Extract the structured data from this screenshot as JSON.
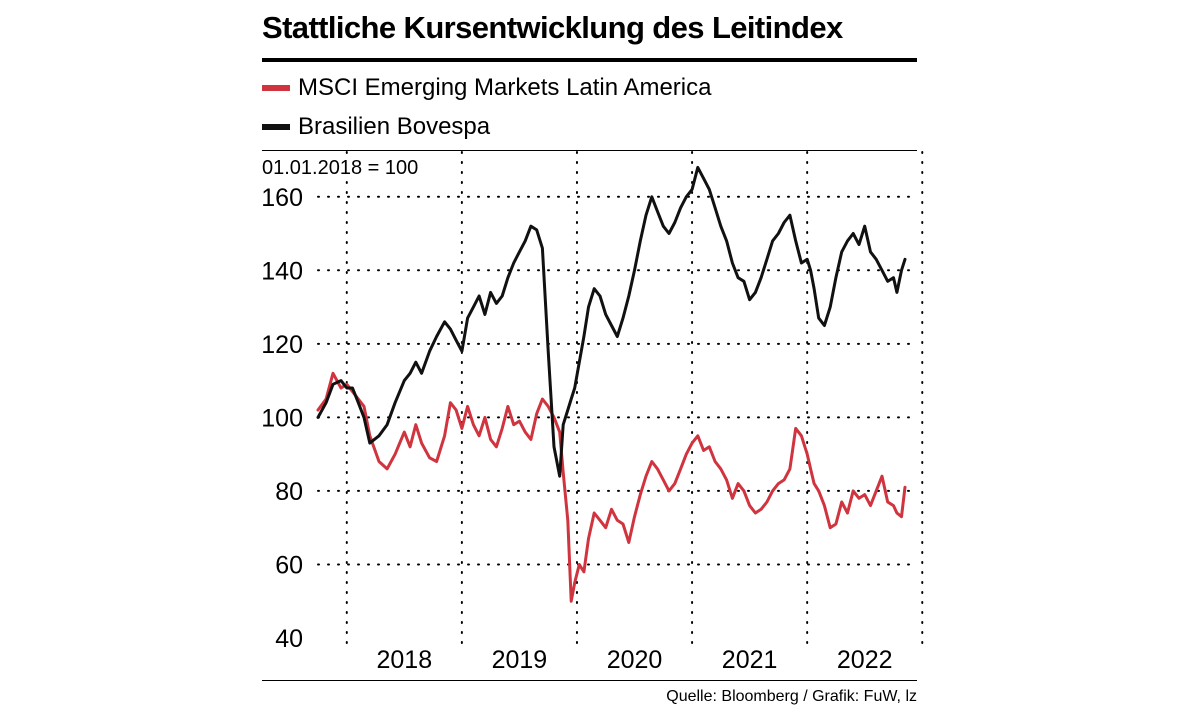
{
  "title": "Stattliche Kursentwicklung des Leitindex",
  "index_note": "01.01.2018 = 100",
  "source": "Quelle: Bloomberg / Grafik: FuW, lz",
  "colors": {
    "msci": "#d0343f",
    "bovespa": "#111111"
  },
  "legend": [
    {
      "label": "MSCI Emerging Markets Latin America",
      "color": "#d0343f"
    },
    {
      "label": "Brasilien Bovespa",
      "color": "#111111"
    }
  ],
  "chart_data": {
    "type": "line",
    "title": "Stattliche Kursentwicklung des Leitindex",
    "subtitle": "01.01.2018 = 100",
    "xlabel": "",
    "ylabel": "",
    "ylim": [
      40,
      170
    ],
    "xlim": [
      2017.75,
      2022.85
    ],
    "yticks": [
      "40",
      "60",
      "80",
      "100",
      "120",
      "140",
      "160"
    ],
    "xtick_labels": [
      "2018",
      "2019",
      "2020",
      "2021",
      "2022"
    ],
    "grid": true,
    "legend_position": "top-left",
    "series": [
      {
        "name": "MSCI Emerging Markets Latin America",
        "x": [
          2017.75,
          2017.82,
          2017.88,
          2017.95,
          2018.0,
          2018.05,
          2018.1,
          2018.15,
          2018.2,
          2018.28,
          2018.35,
          2018.42,
          2018.5,
          2018.55,
          2018.6,
          2018.65,
          2018.72,
          2018.78,
          2018.85,
          2018.9,
          2018.95,
          2019.0,
          2019.05,
          2019.1,
          2019.15,
          2019.2,
          2019.25,
          2019.3,
          2019.35,
          2019.4,
          2019.45,
          2019.5,
          2019.55,
          2019.6,
          2019.65,
          2019.7,
          2019.75,
          2019.8,
          2019.85,
          2019.88,
          2019.92,
          2019.95,
          2019.98,
          2020.02,
          2020.06,
          2020.1,
          2020.15,
          2020.2,
          2020.25,
          2020.3,
          2020.35,
          2020.4,
          2020.45,
          2020.5,
          2020.55,
          2020.6,
          2020.65,
          2020.7,
          2020.75,
          2020.8,
          2020.85,
          2020.9,
          2020.95,
          2021.0,
          2021.05,
          2021.1,
          2021.15,
          2021.2,
          2021.25,
          2021.3,
          2021.35,
          2021.4,
          2021.45,
          2021.5,
          2021.55,
          2021.6,
          2021.65,
          2021.7,
          2021.75,
          2021.8,
          2021.85,
          2021.9,
          2021.95,
          2022.0,
          2022.03,
          2022.06,
          2022.1,
          2022.15,
          2022.2,
          2022.25,
          2022.3,
          2022.35,
          2022.4,
          2022.45,
          2022.5,
          2022.55,
          2022.6,
          2022.65,
          2022.7,
          2022.75,
          2022.78,
          2022.82,
          2022.85
        ],
        "values": [
          102,
          105,
          112,
          108,
          109,
          107,
          105,
          103,
          95,
          88,
          86,
          90,
          96,
          92,
          98,
          93,
          89,
          88,
          95,
          104,
          102,
          97,
          103,
          98,
          95,
          100,
          94,
          92,
          97,
          103,
          98,
          99,
          96,
          94,
          101,
          105,
          103,
          100,
          96,
          85,
          72,
          50,
          55,
          60,
          58,
          67,
          74,
          72,
          70,
          75,
          72,
          71,
          66,
          73,
          79,
          84,
          88,
          86,
          83,
          80,
          82,
          86,
          90,
          93,
          95,
          91,
          92,
          88,
          86,
          83,
          78,
          82,
          80,
          76,
          74,
          75,
          77,
          80,
          82,
          83,
          86,
          97,
          95,
          90,
          86,
          82,
          80,
          76,
          70,
          71,
          77,
          74,
          80,
          78,
          79,
          76,
          80,
          84,
          77,
          76,
          74,
          73,
          81
        ]
      },
      {
        "name": "Brasilien Bovespa",
        "x": [
          2017.75,
          2017.82,
          2017.88,
          2017.95,
          2018.0,
          2018.05,
          2018.1,
          2018.15,
          2018.2,
          2018.28,
          2018.35,
          2018.42,
          2018.5,
          2018.55,
          2018.6,
          2018.65,
          2018.72,
          2018.78,
          2018.85,
          2018.9,
          2018.95,
          2019.0,
          2019.05,
          2019.1,
          2019.15,
          2019.2,
          2019.25,
          2019.3,
          2019.35,
          2019.4,
          2019.45,
          2019.5,
          2019.55,
          2019.6,
          2019.65,
          2019.7,
          2019.75,
          2019.8,
          2019.85,
          2019.88,
          2019.92,
          2019.95,
          2019.98,
          2020.02,
          2020.06,
          2020.1,
          2020.15,
          2020.2,
          2020.25,
          2020.3,
          2020.35,
          2020.4,
          2020.45,
          2020.5,
          2020.55,
          2020.6,
          2020.65,
          2020.7,
          2020.75,
          2020.8,
          2020.85,
          2020.9,
          2020.95,
          2021.0,
          2021.05,
          2021.1,
          2021.15,
          2021.2,
          2021.25,
          2021.3,
          2021.35,
          2021.4,
          2021.45,
          2021.5,
          2021.55,
          2021.6,
          2021.65,
          2021.7,
          2021.75,
          2021.8,
          2021.85,
          2021.9,
          2021.95,
          2022.0,
          2022.03,
          2022.06,
          2022.1,
          2022.15,
          2022.2,
          2022.25,
          2022.3,
          2022.35,
          2022.4,
          2022.45,
          2022.5,
          2022.55,
          2022.6,
          2022.65,
          2022.7,
          2022.75,
          2022.78,
          2022.82,
          2022.85
        ],
        "values": [
          100,
          104,
          109,
          110,
          108,
          108,
          104,
          100,
          93,
          95,
          98,
          104,
          110,
          112,
          115,
          112,
          118,
          122,
          126,
          124,
          121,
          118,
          127,
          130,
          133,
          128,
          134,
          131,
          133,
          138,
          142,
          145,
          148,
          152,
          151,
          146,
          118,
          92,
          84,
          98,
          102,
          105,
          108,
          115,
          122,
          130,
          135,
          133,
          128,
          125,
          122,
          127,
          133,
          140,
          148,
          155,
          160,
          156,
          152,
          150,
          153,
          157,
          160,
          162,
          168,
          165,
          162,
          157,
          152,
          148,
          142,
          138,
          137,
          132,
          134,
          138,
          143,
          148,
          150,
          153,
          155,
          148,
          142,
          143,
          140,
          135,
          127,
          125,
          130,
          138,
          145,
          148,
          150,
          147,
          152,
          145,
          143,
          140,
          137,
          138,
          134,
          140,
          143
        ]
      }
    ]
  }
}
